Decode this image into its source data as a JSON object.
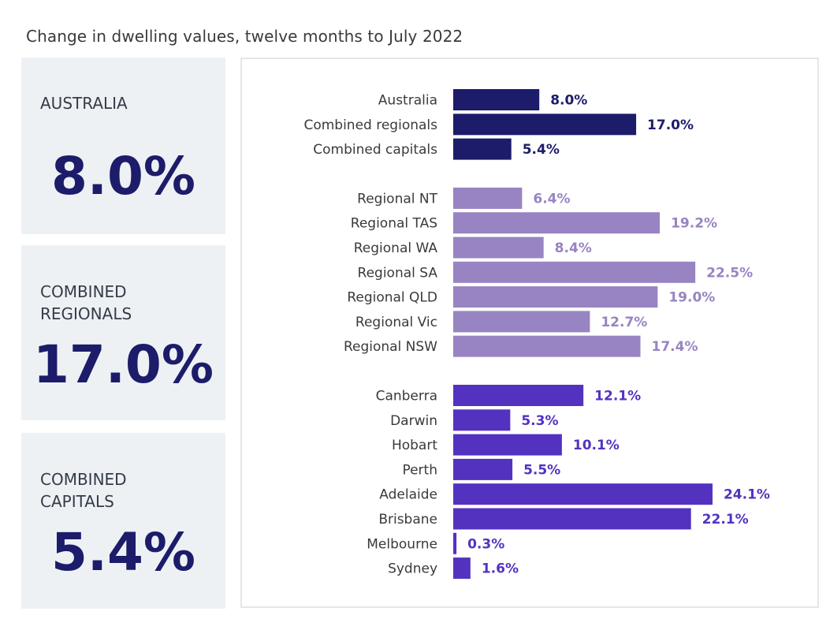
{
  "title": "Change in dwelling values, twelve months to July 2022",
  "summary": {
    "australia": {
      "label": "AUSTRALIA",
      "value": "8.0%"
    },
    "regionals": {
      "label": "COMBINED\nREGIONALS",
      "value": "17.0%"
    },
    "capitals": {
      "label": "COMBINED\nCAPITALS",
      "value": "5.4%"
    }
  },
  "colors": {
    "national": "#1c1c6a",
    "regional": "#9884c2",
    "capital": "#5332c0",
    "summary_value": "#1c1c6a",
    "card_bg": "#eef1f4"
  },
  "chart_data": {
    "type": "bar",
    "orientation": "horizontal",
    "title": "Change in dwelling values, twelve months to July 2022",
    "unit": "%",
    "groups": [
      {
        "name": "national",
        "color": "#1c1c6a",
        "categories": [
          "Australia",
          "Combined regionals",
          "Combined capitals"
        ],
        "values": [
          8.0,
          17.0,
          5.4
        ],
        "labels": [
          "8.0%",
          "17.0%",
          "5.4%"
        ]
      },
      {
        "name": "regional",
        "color": "#9884c2",
        "categories": [
          "Regional NT",
          "Regional TAS",
          "Regional WA",
          "Regional SA",
          "Regional QLD",
          "Regional Vic",
          "Regional NSW"
        ],
        "values": [
          6.4,
          19.2,
          8.4,
          22.5,
          19.0,
          12.7,
          17.4
        ],
        "labels": [
          "6.4%",
          "19.2%",
          "8.4%",
          "22.5%",
          "19.0%",
          "12.7%",
          "17.4%"
        ]
      },
      {
        "name": "capital",
        "color": "#5332c0",
        "categories": [
          "Canberra",
          "Darwin",
          "Hobart",
          "Perth",
          "Adelaide",
          "Brisbane",
          "Melbourne",
          "Sydney"
        ],
        "values": [
          12.1,
          5.3,
          10.1,
          5.5,
          24.1,
          22.1,
          0.3,
          1.6
        ],
        "labels": [
          "12.1%",
          "5.3%",
          "10.1%",
          "5.5%",
          "24.1%",
          "22.1%",
          "0.3%",
          "1.6%"
        ]
      }
    ],
    "xlim": [
      0,
      24.1
    ],
    "grid": false,
    "legend": "none"
  }
}
